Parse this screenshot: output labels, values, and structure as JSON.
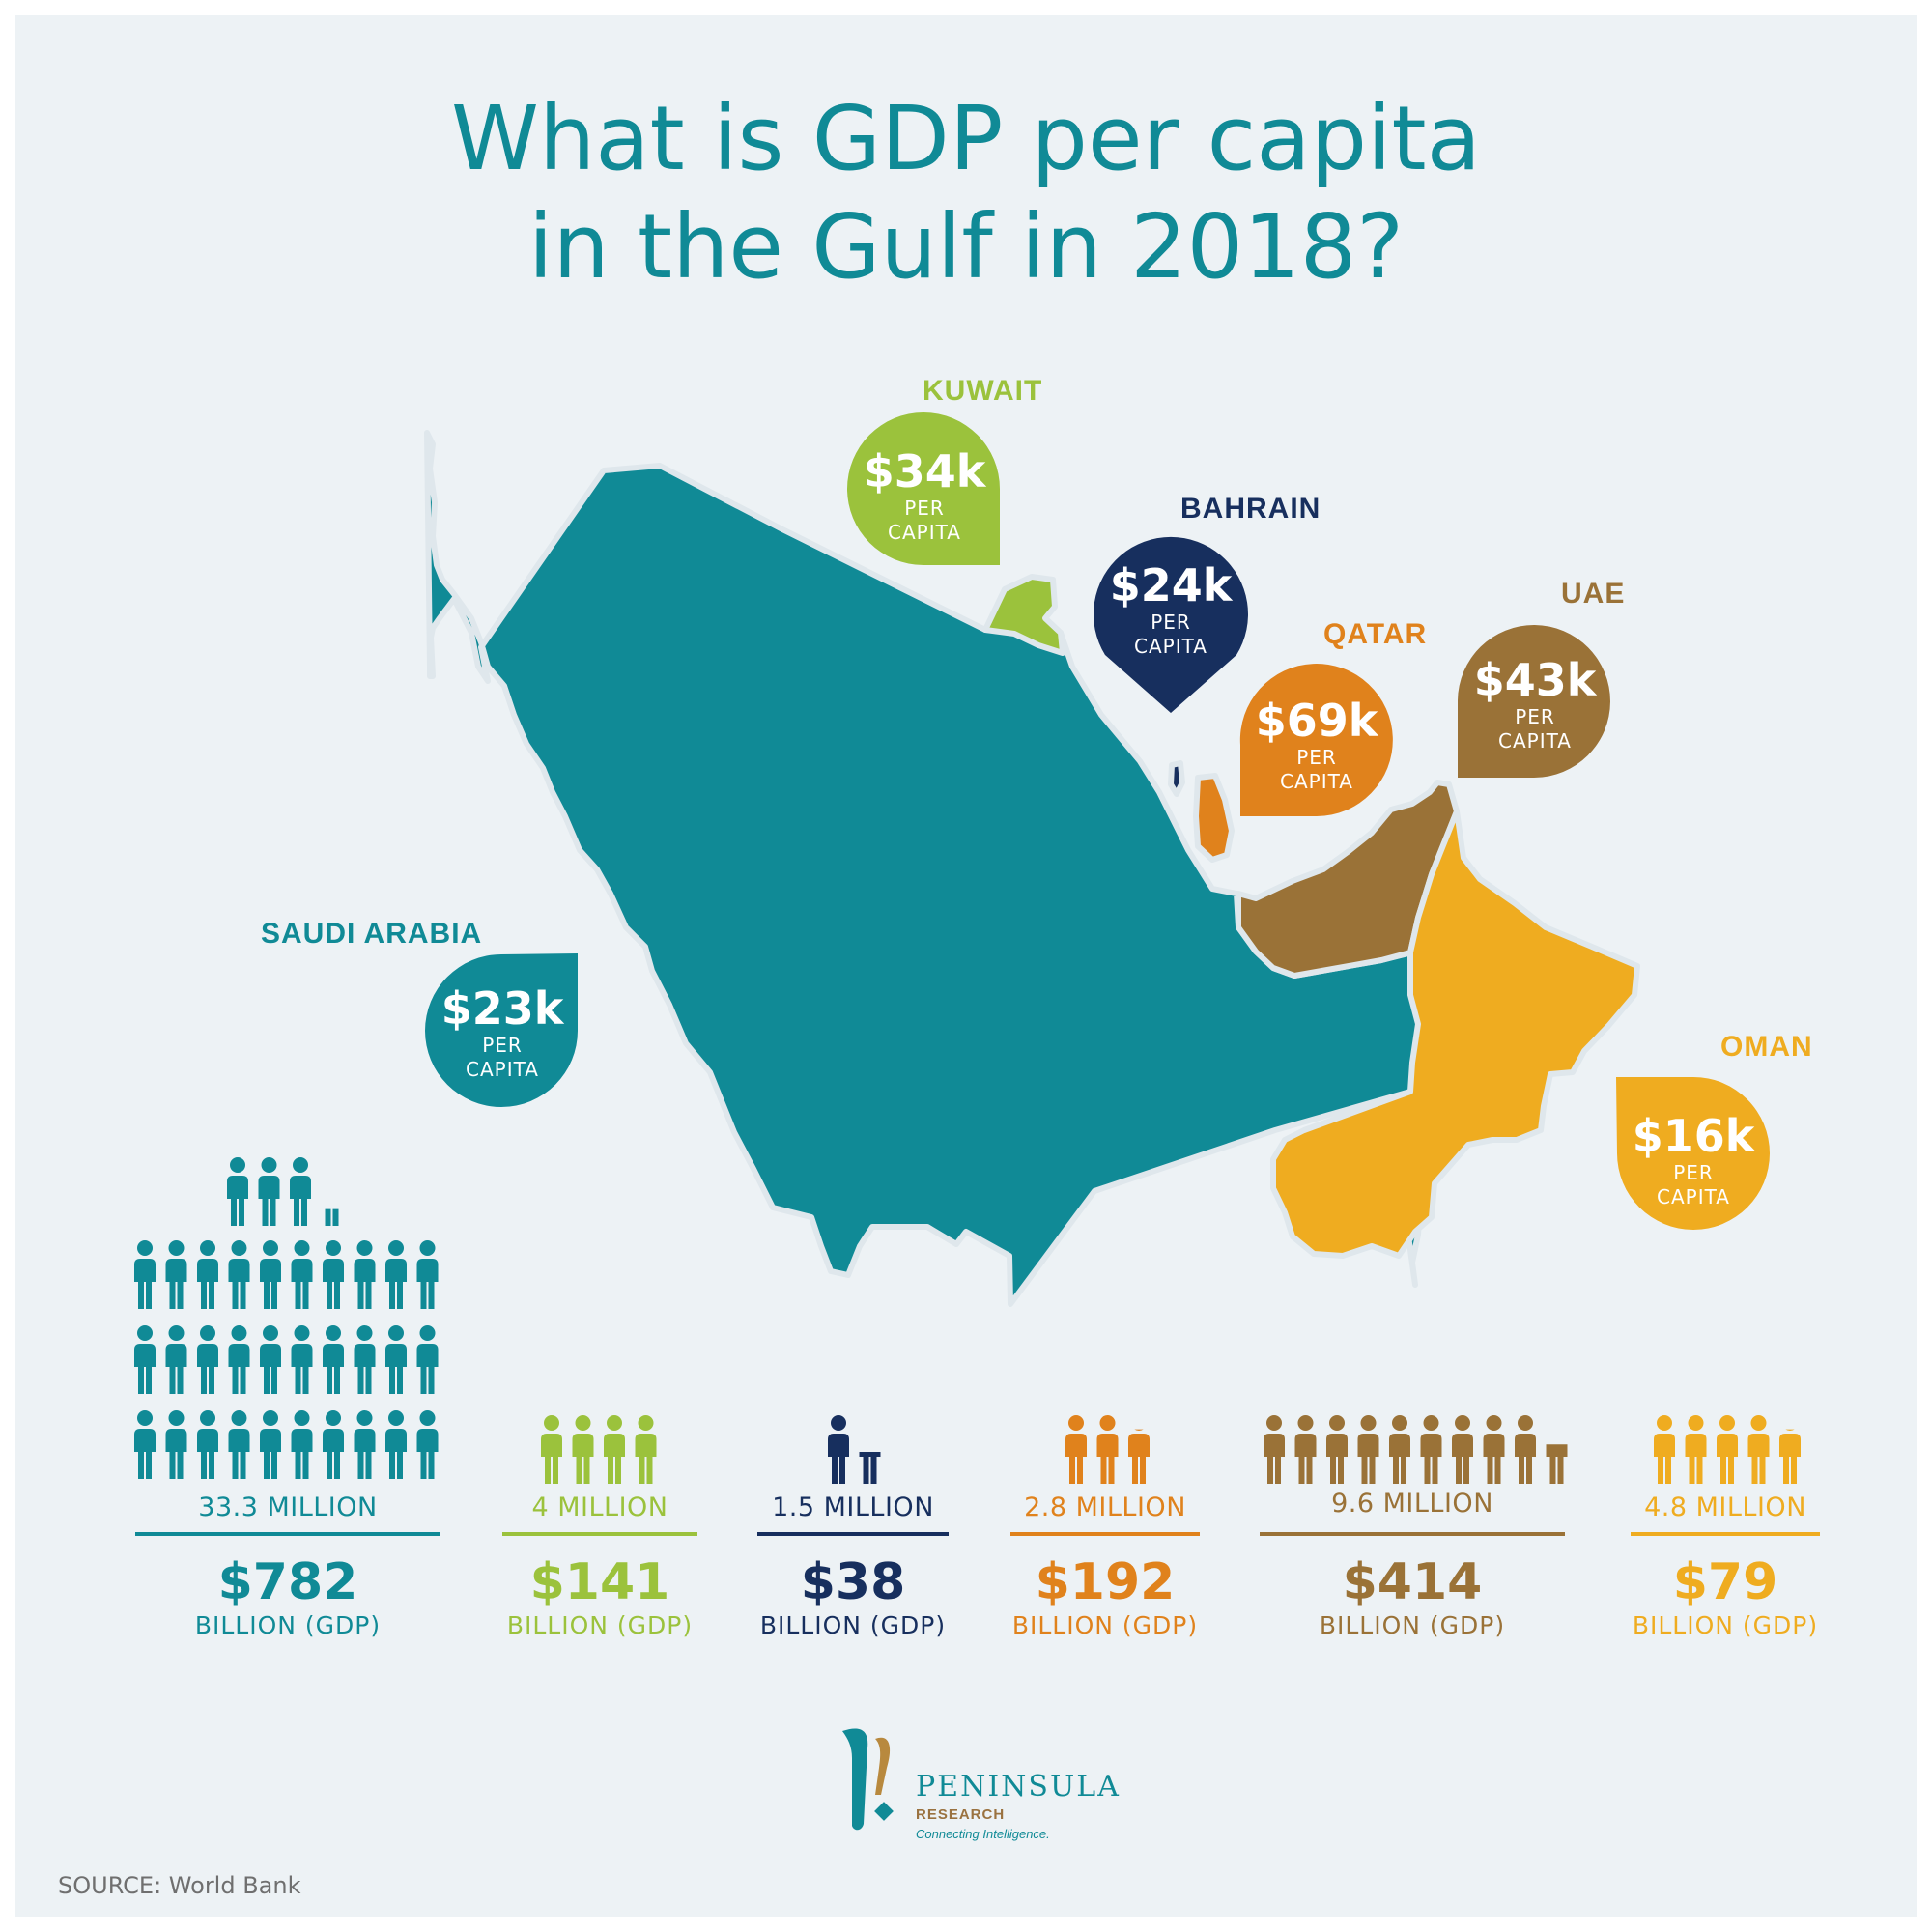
{
  "title": {
    "line1": "What is GDP per capita",
    "line2": "in the Gulf in 2018?"
  },
  "countries": [
    {
      "name": "SAUDI ARABIA",
      "per_capita": "$23k",
      "per_capita_unit_1": "PER",
      "per_capita_unit_2": "CAPITA",
      "population": "33.3 MILLION",
      "gdp": "$782",
      "gdp_unit": "BILLION (GDP)",
      "color": "#108a96",
      "people_icons": 33.3
    },
    {
      "name": "KUWAIT",
      "per_capita": "$34k",
      "per_capita_unit_1": "PER",
      "per_capita_unit_2": "CAPITA",
      "population": "4 MILLION",
      "gdp": "$141",
      "gdp_unit": "BILLION (GDP)",
      "color": "#9bc23c",
      "people_icons": 4
    },
    {
      "name": "BAHRAIN",
      "per_capita": "$24k",
      "per_capita_unit_1": "PER",
      "per_capita_unit_2": "CAPITA",
      "population": "1.5 MILLION",
      "gdp": "$38",
      "gdp_unit": "BILLION (GDP)",
      "color": "#172f5e",
      "people_icons": 1.5
    },
    {
      "name": "QATAR",
      "per_capita": "$69k",
      "per_capita_unit_1": "PER",
      "per_capita_unit_2": "CAPITA",
      "population": "2.8 MILLION",
      "gdp": "$192",
      "gdp_unit": "BILLION (GDP)",
      "color": "#e0821c",
      "people_icons": 2.8
    },
    {
      "name": "UAE",
      "per_capita": "$43k",
      "per_capita_unit_1": "PER",
      "per_capita_unit_2": "CAPITA",
      "population": "9.6 MILLION",
      "gdp": "$414",
      "gdp_unit": "BILLION (GDP)",
      "color": "#9a7237",
      "people_icons": 9.6
    },
    {
      "name": "OMAN",
      "per_capita": "$16k",
      "per_capita_unit_1": "PER",
      "per_capita_unit_2": "CAPITA",
      "population": "4.8 MILLION",
      "gdp": "$79",
      "gdp_unit": "BILLION (GDP)",
      "color": "#efac20",
      "people_icons": 4.8
    }
  ],
  "logo": {
    "name": "PENINSULA",
    "sub": "RESEARCH",
    "tagline": "Connecting Intelligence."
  },
  "source": "SOURCE: World Bank"
}
